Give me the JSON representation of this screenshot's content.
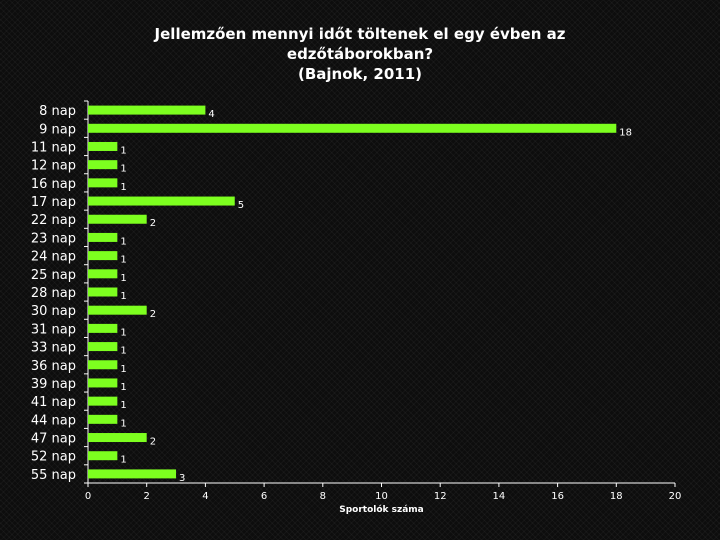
{
  "colors": {
    "background": "#0d0d0d",
    "bar": "#7dff1f",
    "axis": "#ffffff",
    "text": "#ffffff"
  },
  "chart_data": {
    "type": "bar",
    "orientation": "horizontal",
    "title_lines": [
      "Jellemzően mennyi időt töltenek el egy évben az",
      "edzőtáborokban?",
      "(Bajnok, 2011)"
    ],
    "xlabel": "Sportolók száma",
    "ylabel": "",
    "xlim": [
      0,
      20
    ],
    "xticks": [
      0,
      2,
      4,
      6,
      8,
      10,
      12,
      14,
      16,
      18,
      20
    ],
    "grid": false,
    "legend": "none",
    "data_labels": true,
    "categories": [
      "8 nap",
      "9 nap",
      "11 nap",
      "12 nap",
      "16 nap",
      "17 nap",
      "22 nap",
      "23 nap",
      "24 nap",
      "25 nap",
      "28 nap",
      "30 nap",
      "31 nap",
      "33 nap",
      "36 nap",
      "39 nap",
      "41 nap",
      "44 nap",
      "47 nap",
      "52 nap",
      "55 nap"
    ],
    "values": [
      4,
      18,
      1,
      1,
      1,
      5,
      2,
      1,
      1,
      1,
      1,
      2,
      1,
      1,
      1,
      1,
      1,
      1,
      2,
      1,
      3
    ]
  }
}
